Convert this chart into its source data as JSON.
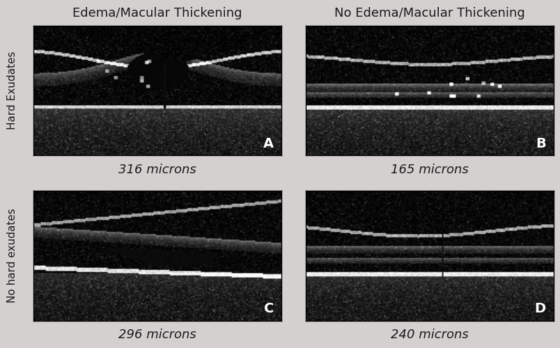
{
  "background_color": "#d4d0d0",
  "fig_width": 8.78,
  "fig_height": 5.05,
  "col_titles": [
    "Edema/Macular Thickening",
    "No Edema/Macular Thickening"
  ],
  "row_labels": [
    "Hard Exudates",
    "No hard exudates"
  ],
  "panel_labels": [
    "A",
    "B",
    "C",
    "D"
  ],
  "captions": [
    "316 microns",
    "165 microns",
    "296 microns",
    "240 microns"
  ],
  "caption_fontsize": 13,
  "col_title_fontsize": 13,
  "row_label_fontsize": 11,
  "panel_label_fontsize": 14,
  "panel_label_color": "#ffffff",
  "text_color": "#1a1a1a",
  "image_bg": "#000000"
}
